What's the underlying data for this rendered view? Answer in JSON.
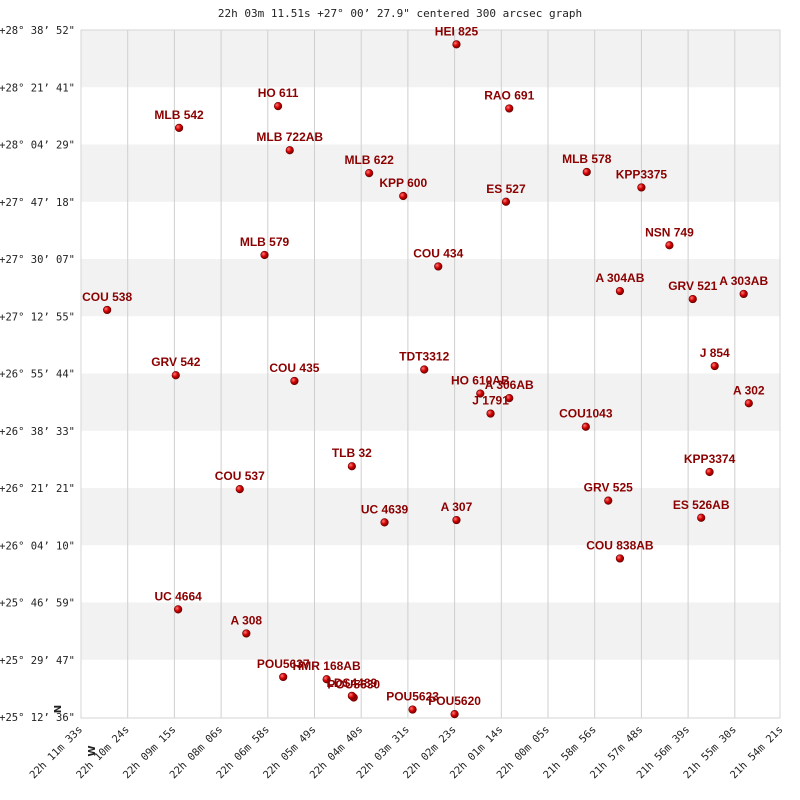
{
  "chart_data": {
    "type": "scatter",
    "title": "22h 03m 11.51s +27° 00’ 27.9\" centered 300 arcsec graph",
    "x_ticks": [
      "22h 11m 33s",
      "22h 10m 24s",
      "22h 09m 15s",
      "22h 08m 06s",
      "22h 06m 58s",
      "22h 05m 49s",
      "22h 04m 40s",
      "22h 03m 31s",
      "22h 02m 23s",
      "22h 01m 14s",
      "22h 00m 05s",
      "21h 58m 56s",
      "21h 57m 48s",
      "21h 56m 39s",
      "21h 55m 30s",
      "21h 54m 21s"
    ],
    "y_ticks": [
      "+28° 38’ 52\"",
      "+28° 21’ 41\"",
      "+28° 04’ 29\"",
      "+27° 47’ 18\"",
      "+27° 30’ 07\"",
      "+27° 12’ 55\"",
      "+26° 55’ 44\"",
      "+26° 38’ 33\"",
      "+26° 21’ 21\"",
      "+26° 04’ 10\"",
      "+25° 46’ 59\"",
      "+25° 29’ 47\"",
      "+25° 12’ 36\""
    ],
    "compass": {
      "north": "N",
      "west": "W"
    },
    "x_unit": "RA tick index (0 = 22h 11m 33s, 15 = 21h 54m 21s)",
    "y_unit": "Dec tick index (0 = +25° 12’ 36\", 12 = +28° 38’ 52\")",
    "points": [
      {
        "label": "HEI 825",
        "x": 8.04,
        "y": 11.75
      },
      {
        "label": "HO  611",
        "x": 4.22,
        "y": 10.67
      },
      {
        "label": "RAO 691",
        "x": 9.17,
        "y": 10.63
      },
      {
        "label": "MLB 542",
        "x": 2.1,
        "y": 10.29
      },
      {
        "label": "MLB 722AB",
        "x": 4.47,
        "y": 9.9
      },
      {
        "label": "MLB 622",
        "x": 6.17,
        "y": 9.5
      },
      {
        "label": "MLB 578",
        "x": 10.83,
        "y": 9.52
      },
      {
        "label": "KPP3375",
        "x": 12.0,
        "y": 9.25
      },
      {
        "label": "KPP 600",
        "x": 6.9,
        "y": 9.1
      },
      {
        "label": "ES  527",
        "x": 9.1,
        "y": 9.0
      },
      {
        "label": "NSN 749",
        "x": 12.6,
        "y": 8.24
      },
      {
        "label": "MLB 579",
        "x": 3.93,
        "y": 8.07
      },
      {
        "label": "COU 434",
        "x": 7.65,
        "y": 7.87
      },
      {
        "label": "A   304AB",
        "x": 11.54,
        "y": 7.44
      },
      {
        "label": "GRV 521",
        "x": 13.1,
        "y": 7.3
      },
      {
        "label": "A   303AB",
        "x": 14.19,
        "y": 7.39
      },
      {
        "label": "COU 538",
        "x": 0.56,
        "y": 7.11
      },
      {
        "label": "J   854",
        "x": 13.57,
        "y": 6.13
      },
      {
        "label": "GRV 542",
        "x": 2.03,
        "y": 5.97
      },
      {
        "label": "TDT3312",
        "x": 7.35,
        "y": 6.07
      },
      {
        "label": "COU 435",
        "x": 4.57,
        "y": 5.87
      },
      {
        "label": "HO  610AB",
        "x": 8.55,
        "y": 5.65
      },
      {
        "label": "A   306AB",
        "x": 9.17,
        "y": 5.57
      },
      {
        "label": "J  1791",
        "x": 8.77,
        "y": 5.3
      },
      {
        "label": "A   302",
        "x": 14.3,
        "y": 5.48
      },
      {
        "label": "COU1043",
        "x": 10.81,
        "y": 5.07
      },
      {
        "label": "TLB  32",
        "x": 5.8,
        "y": 4.38
      },
      {
        "label": "KPP3374",
        "x": 13.46,
        "y": 4.28
      },
      {
        "label": "COU 537",
        "x": 3.4,
        "y": 3.98
      },
      {
        "label": "GRV 525",
        "x": 11.29,
        "y": 3.78
      },
      {
        "label": "ES  526AB",
        "x": 13.28,
        "y": 3.48
      },
      {
        "label": "A   307",
        "x": 8.04,
        "y": 3.44
      },
      {
        "label": "UC 4639",
        "x": 6.5,
        "y": 3.4
      },
      {
        "label": "COU 838AB",
        "x": 11.54,
        "y": 2.77
      },
      {
        "label": "UC 4664",
        "x": 2.08,
        "y": 1.88
      },
      {
        "label": "A   308",
        "x": 3.54,
        "y": 1.46
      },
      {
        "label": "POU5637",
        "x": 4.33,
        "y": 0.7
      },
      {
        "label": "HMR 168AB",
        "x": 5.26,
        "y": 0.66
      },
      {
        "label": "POU5630",
        "x": 5.84,
        "y": 0.34
      },
      {
        "label": "LDS4489",
        "x": 5.8,
        "y": 0.37
      },
      {
        "label": "POU5623",
        "x": 7.1,
        "y": 0.13
      },
      {
        "label": "POU5620",
        "x": 8.0,
        "y": 0.05
      }
    ]
  }
}
